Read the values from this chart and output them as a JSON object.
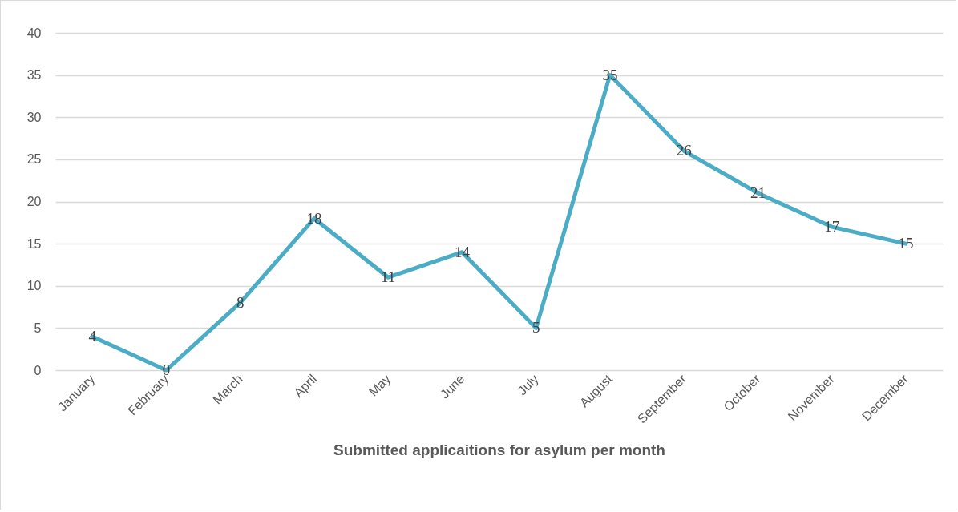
{
  "chart_data": {
    "type": "line",
    "xlabel": "Submitted applicaitions for asylum per month",
    "categories": [
      "January",
      "February",
      "March",
      "April",
      "May",
      "June",
      "July",
      "August",
      "September",
      "October",
      "November",
      "December"
    ],
    "series": [
      {
        "color": "#4bacc6",
        "values": [
          4,
          0,
          8,
          18,
          11,
          14,
          5,
          35,
          26,
          21,
          17,
          15
        ]
      }
    ],
    "ylim": [
      0,
      40
    ],
    "yticks": [
      0,
      5,
      10,
      15,
      20,
      25,
      30,
      35,
      40
    ],
    "grid": "y",
    "data_labels": true,
    "marker": "none",
    "line_style": "solid",
    "legend": false
  }
}
